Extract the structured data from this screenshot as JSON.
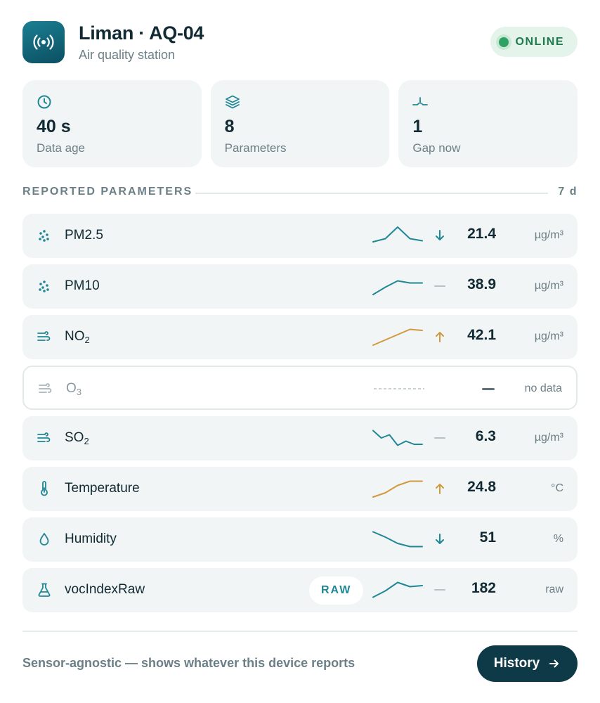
{
  "header": {
    "title": "Liman · AQ-04",
    "subtitle": "Air quality station",
    "icon": "broadcast-icon",
    "status": "ONLINE",
    "status_color": "#2ea264"
  },
  "stats": [
    {
      "icon": "clock-icon",
      "value": "40 s",
      "label": "Data age"
    },
    {
      "icon": "layers-icon",
      "value": "8",
      "label": "Parameters"
    },
    {
      "icon": "gap-icon",
      "value": "1",
      "label": "Gap now"
    }
  ],
  "section": {
    "title": "REPORTED PARAMETERS",
    "range": "7 d"
  },
  "parameters": [
    {
      "icon": "particles-icon",
      "name": "PM2.5",
      "name_sub": "",
      "trend": "down",
      "value": "21.4",
      "unit": "µg/m³",
      "spark_color": "#1f8796",
      "spark": [
        0.2,
        0.35,
        0.9,
        0.35,
        0.25
      ]
    },
    {
      "icon": "particles-icon",
      "name": "PM10",
      "name_sub": "",
      "trend": "flat",
      "value": "38.9",
      "unit": "µg/m³",
      "spark_color": "#1f8796",
      "spark": [
        0.1,
        0.45,
        0.75,
        0.65,
        0.65
      ]
    },
    {
      "icon": "wind-icon",
      "name": "NO",
      "name_sub": "2",
      "trend": "up",
      "value": "42.1",
      "unit": "µg/m³",
      "spark_color": "#d19a3e",
      "spark": [
        0.1,
        0.35,
        0.6,
        0.85,
        0.8
      ]
    },
    {
      "icon": "wind-icon",
      "name": "O",
      "name_sub": "3",
      "trend": "none",
      "value": "",
      "unit": "no data",
      "spark_color": "#c9d3d6",
      "spark": []
    },
    {
      "icon": "wind-icon",
      "name": "SO",
      "name_sub": "2",
      "trend": "flat",
      "value": "6.3",
      "unit": "µg/m³",
      "spark_color": "#1f8796",
      "spark": [
        0.85,
        0.5,
        0.65,
        0.15,
        0.35,
        0.2,
        0.2
      ]
    },
    {
      "icon": "thermometer-icon",
      "name": "Temperature",
      "name_sub": "",
      "trend": "up",
      "value": "24.8",
      "unit": "°C",
      "spark_color": "#d19a3e",
      "spark": [
        0.1,
        0.3,
        0.65,
        0.85,
        0.85
      ]
    },
    {
      "icon": "droplet-icon",
      "name": "Humidity",
      "name_sub": "",
      "trend": "down",
      "value": "51",
      "unit": "%",
      "spark_color": "#1f8796",
      "spark": [
        0.85,
        0.6,
        0.3,
        0.15,
        0.15
      ]
    },
    {
      "icon": "flask-icon",
      "name": "vocIndexRaw",
      "name_sub": "",
      "badge": "RAW",
      "trend": "flat",
      "value": "182",
      "unit": "raw",
      "spark_color": "#1f8796",
      "spark": [
        0.15,
        0.45,
        0.85,
        0.65,
        0.7
      ]
    }
  ],
  "footer": {
    "note": "Sensor-agnostic — shows whatever this device reports",
    "history_label": "History"
  }
}
